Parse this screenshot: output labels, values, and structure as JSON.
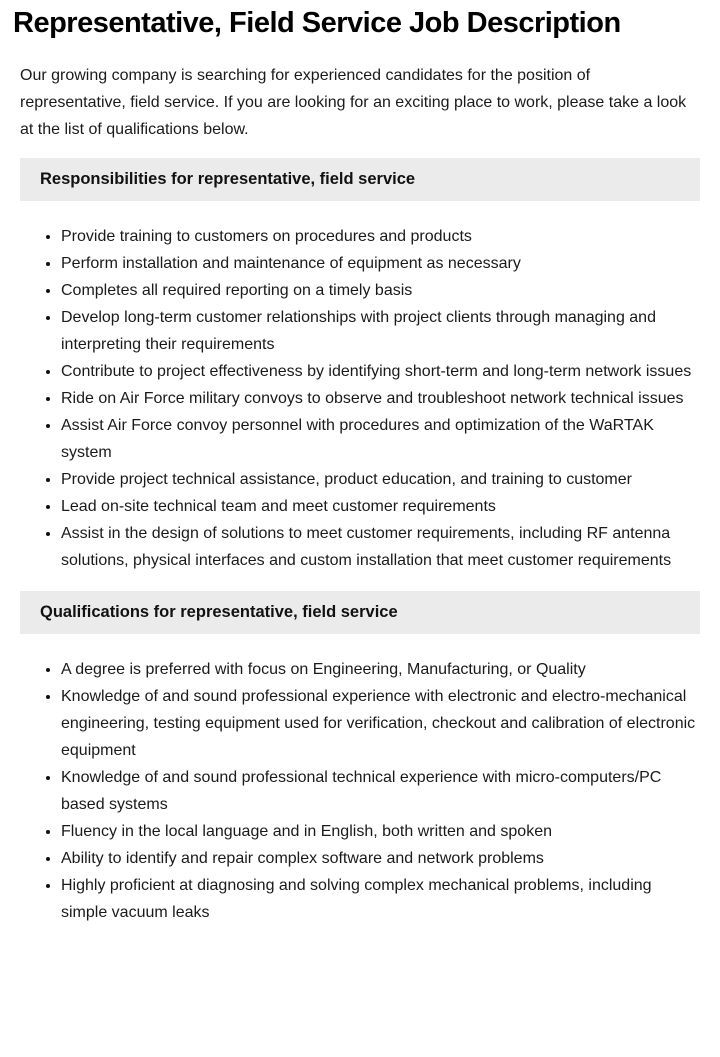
{
  "page": {
    "title": "Representative, Field Service Job Description",
    "intro": "Our growing company is searching for experienced candidates for the position of representative, field service. If you are looking for an exciting place to work, please take a look at the list of qualifications below."
  },
  "sections": [
    {
      "heading": "Responsibilities for representative, field service",
      "items": [
        "Provide training to customers on procedures and products",
        "Perform installation and maintenance of equipment as necessary",
        "Completes all required reporting on a timely basis",
        "Develop long-term customer relationships with project clients through managing and interpreting their requirements",
        "Contribute to project effectiveness by identifying short-term and long-term network issues",
        "Ride on Air Force military convoys to observe and troubleshoot network technical issues",
        "Assist Air Force convoy personnel with procedures and optimization of the WaRTAK system",
        "Provide project technical assistance, product education, and training to customer",
        "Lead on-site technical team and meet customer requirements",
        "Assist in the design of solutions to meet customer requirements, including RF antenna solutions, physical interfaces and custom installation that meet customer requirements"
      ]
    },
    {
      "heading": "Qualifications for representative, field service",
      "items": [
        "A degree is preferred with focus on Engineering, Manufacturing, or Quality",
        "Knowledge of and sound professional experience with electronic and electro-mechanical engineering, testing equipment used for verification, checkout and calibration of electronic equipment",
        "Knowledge of and sound professional technical experience with micro-computers/PC based systems",
        "Fluency in the local language and in English, both written and spoken",
        "Ability to identify and repair complex software and network problems",
        "Highly proficient at diagnosing and solving complex mechanical problems, including simple vacuum leaks"
      ]
    }
  ],
  "colors": {
    "section_header_bg": "#ebebeb",
    "text": "#1a1a1a"
  }
}
